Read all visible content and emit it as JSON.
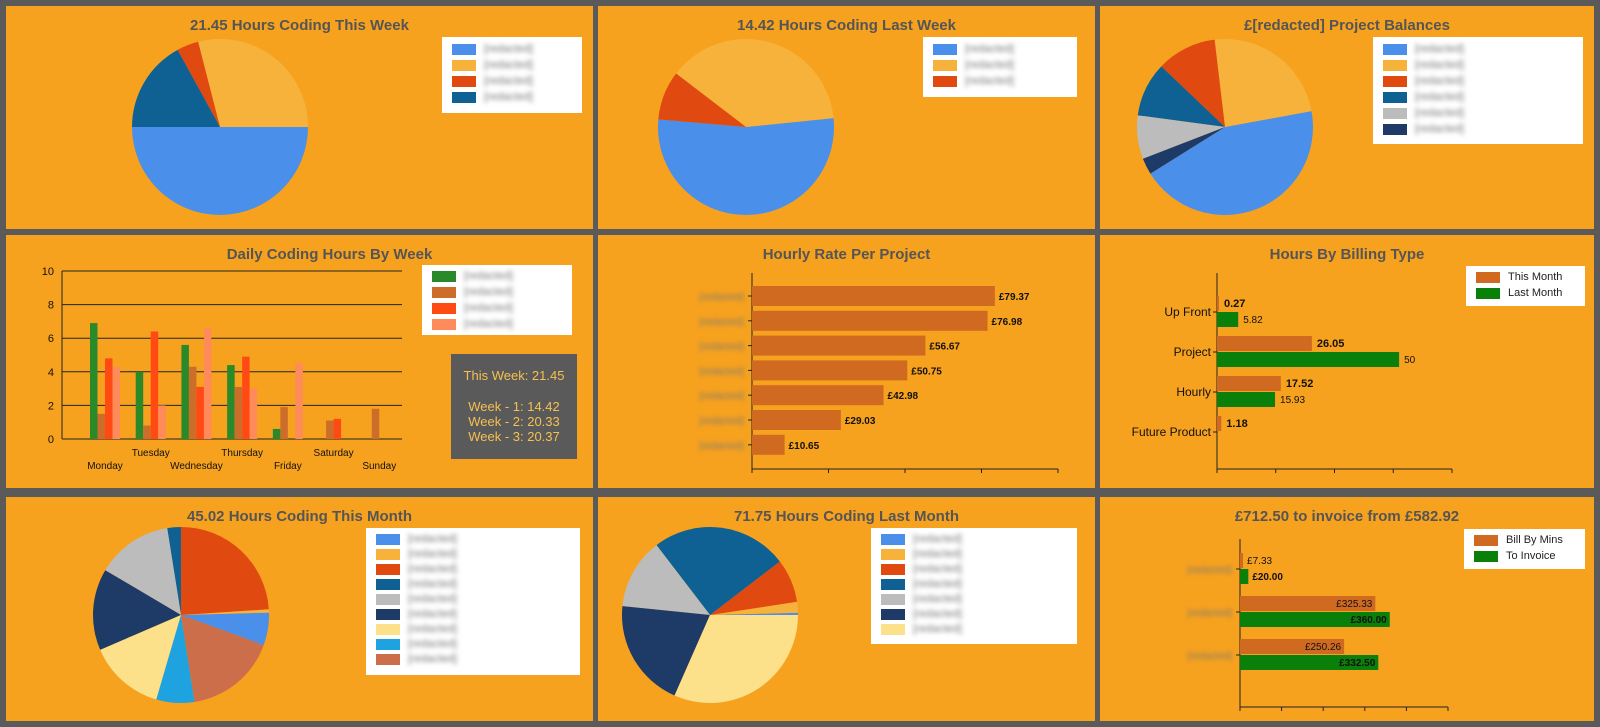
{
  "palette": {
    "background": "#5a5a5a",
    "panel": "#f7a21e",
    "title": "#555555",
    "blue": "#4a8fea",
    "light_orange": "#f7b23c",
    "red_orange": "#e04a10",
    "dark_blue": "#0f6193",
    "grey": "#bcbcbc",
    "navy": "#1e3a66",
    "pale_yellow": "#fde08a",
    "sky": "#1ea3e0",
    "terracotta": "#cc6e4a",
    "bar_orange": "#d06a20",
    "bar_green": "#0a7f0a",
    "series_green": "#2a8a2a",
    "series_orange": "#cc6e2a",
    "series_red": "#ff4a14",
    "series_salmon": "#ff8a5a"
  },
  "panels": {
    "this_week": {
      "title": "21.45 Hours Coding This Week",
      "legend": [
        "[redacted]",
        "[redacted]",
        "[redacted]",
        "[redacted]"
      ]
    },
    "last_week": {
      "title": "14.42 Hours Coding Last Week",
      "legend": [
        "[redacted]",
        "[redacted]",
        "[redacted]"
      ]
    },
    "balances": {
      "title": "£[redacted] Project Balances",
      "legend": [
        "[redacted]",
        "[redacted]",
        "[redacted]",
        "[redacted]",
        "[redacted]",
        "[redacted]"
      ]
    },
    "daily": {
      "title": "Daily Coding Hours By Week",
      "legend": [
        "[redacted]",
        "[redacted]",
        "[redacted]",
        "[redacted]"
      ],
      "summary_this_week": "This Week: 21.45",
      "summary_week_1": "Week - 1: 14.42",
      "summary_week_2": "Week - 2: 20.33",
      "summary_week_3": "Week - 3: 20.37"
    },
    "hourly_rate": {
      "title": "Hourly Rate Per Project"
    },
    "billing_type": {
      "title": "Hours By Billing Type",
      "legend": [
        "This Month",
        "Last Month"
      ]
    },
    "this_month": {
      "title": "45.02 Hours Coding This Month",
      "legend": [
        "[redacted]",
        "[redacted]",
        "[redacted]",
        "[redacted]",
        "[redacted]",
        "[redacted]",
        "[redacted]",
        "[redacted]",
        "[redacted]"
      ]
    },
    "last_month": {
      "title": "71.75 Hours Coding Last Month",
      "legend": [
        "[redacted]",
        "[redacted]",
        "[redacted]",
        "[redacted]",
        "[redacted]",
        "[redacted]",
        "[redacted]"
      ]
    },
    "invoice": {
      "title": "£712.50 to invoice from £582.92",
      "legend": [
        "Bill By Mins",
        "To Invoice"
      ]
    }
  },
  "chart_data": [
    {
      "id": "this_week",
      "type": "pie",
      "slices": [
        {
          "label": "[redacted]",
          "value": 50,
          "color": "#4a8fea"
        },
        {
          "label": "[redacted]",
          "value": 29,
          "color": "#f7b23c"
        },
        {
          "label": "[redacted]",
          "value": 4,
          "color": "#e04a10"
        },
        {
          "label": "[redacted]",
          "value": 17,
          "color": "#0f6193"
        }
      ]
    },
    {
      "id": "last_week",
      "type": "pie",
      "slices": [
        {
          "label": "[redacted]",
          "value": 53,
          "color": "#4a8fea"
        },
        {
          "label": "[redacted]",
          "value": 38,
          "color": "#f7b23c"
        },
        {
          "label": "[redacted]",
          "value": 9,
          "color": "#e04a10"
        }
      ]
    },
    {
      "id": "balances",
      "type": "pie",
      "slices": [
        {
          "label": "[redacted]",
          "value": 44,
          "color": "#4a8fea"
        },
        {
          "label": "[redacted]",
          "value": 24,
          "color": "#f7b23c"
        },
        {
          "label": "[redacted]",
          "value": 11,
          "color": "#e04a10"
        },
        {
          "label": "[redacted]",
          "value": 10,
          "color": "#0f6193"
        },
        {
          "label": "[redacted]",
          "value": 8,
          "color": "#bcbcbc"
        },
        {
          "label": "[redacted]",
          "value": 3,
          "color": "#1e3a66"
        }
      ]
    },
    {
      "id": "daily",
      "type": "bar",
      "categories": [
        "Monday",
        "Tuesday",
        "Wednesday",
        "Thursday",
        "Friday",
        "Saturday",
        "Sunday"
      ],
      "ylim": [
        0,
        10
      ],
      "yticks": [
        0,
        2,
        4,
        6,
        8,
        10
      ],
      "series": [
        {
          "values": [
            6.9,
            4.0,
            5.6,
            4.4,
            0.6,
            0,
            0
          ],
          "color": "#2a8a2a"
        },
        {
          "values": [
            1.5,
            0.8,
            4.3,
            3.1,
            1.9,
            1.1,
            1.8
          ],
          "color": "#cc6e2a"
        },
        {
          "values": [
            4.8,
            6.4,
            3.1,
            4.9,
            0,
            1.2,
            0
          ],
          "color": "#ff4a14"
        },
        {
          "values": [
            4.3,
            2.0,
            6.6,
            3.0,
            4.5,
            0,
            0
          ],
          "color": "#ff8a5a"
        }
      ]
    },
    {
      "id": "hourly_rate",
      "type": "bar",
      "orientation": "horizontal",
      "categories": [
        "[redacted]",
        "[redacted]",
        "[redacted]",
        "[redacted]",
        "[redacted]",
        "[redacted]",
        "[redacted]"
      ],
      "values": [
        79.37,
        76.98,
        56.67,
        50.75,
        42.98,
        29.03,
        10.65
      ],
      "labels": [
        "£79.37",
        "£76.98",
        "£56.67",
        "£50.75",
        "£42.98",
        "£29.03",
        "£10.65"
      ],
      "xlim": [
        0,
        100
      ]
    },
    {
      "id": "billing_type",
      "type": "bar",
      "orientation": "horizontal",
      "categories": [
        "Up Front",
        "Project",
        "Hourly",
        "Future Product"
      ],
      "xlim": [
        0,
        100
      ],
      "series": [
        {
          "name": "This Month",
          "values": [
            0.27,
            26.05,
            17.52,
            1.18
          ],
          "labels": [
            "0.27",
            "26.05",
            "17.52",
            "1.18"
          ],
          "color": "#d06a20"
        },
        {
          "name": "Last Month",
          "values": [
            5.82,
            50,
            15.93,
            null
          ],
          "labels": [
            "5.82",
            "50",
            "15.93",
            ""
          ],
          "color": "#0a7f0a"
        }
      ]
    },
    {
      "id": "this_month",
      "type": "pie",
      "slices": [
        {
          "label": "[redacted]",
          "value": 6,
          "color": "#4a8fea"
        },
        {
          "label": "[redacted]",
          "value": 0.6,
          "color": "#f7b23c"
        },
        {
          "label": "[redacted]",
          "value": 24,
          "color": "#e04a10"
        },
        {
          "label": "[redacted]",
          "value": 2.5,
          "color": "#0f6193"
        },
        {
          "label": "[redacted]",
          "value": 14,
          "color": "#bcbcbc"
        },
        {
          "label": "[redacted]",
          "value": 15,
          "color": "#1e3a66"
        },
        {
          "label": "[redacted]",
          "value": 14,
          "color": "#fde08a"
        },
        {
          "label": "[redacted]",
          "value": 7,
          "color": "#1ea3e0"
        },
        {
          "label": "[redacted]",
          "value": 17,
          "color": "#cc6e4a"
        }
      ]
    },
    {
      "id": "last_month",
      "type": "pie",
      "slices": [
        {
          "label": "[redacted]",
          "value": 0.4,
          "color": "#4a8fea"
        },
        {
          "label": "[redacted]",
          "value": 2,
          "color": "#f7b23c"
        },
        {
          "label": "[redacted]",
          "value": 8,
          "color": "#e04a10"
        },
        {
          "label": "[redacted]",
          "value": 25,
          "color": "#0f6193"
        },
        {
          "label": "[redacted]",
          "value": 13,
          "color": "#bcbcbc"
        },
        {
          "label": "[redacted]",
          "value": 20,
          "color": "#1e3a66"
        },
        {
          "label": "[redacted]",
          "value": 31.6,
          "color": "#fde08a"
        }
      ]
    },
    {
      "id": "invoice",
      "type": "bar",
      "orientation": "horizontal",
      "categories": [
        "[redacted]",
        "[redacted]",
        "[redacted]"
      ],
      "xlim": [
        0,
        500
      ],
      "series": [
        {
          "name": "Bill By Mins",
          "values": [
            7.33,
            325.33,
            250.26
          ],
          "labels": [
            "£7.33",
            "£325.33",
            "£250.26"
          ],
          "color": "#d06a20"
        },
        {
          "name": "To Invoice",
          "values": [
            20.0,
            360.0,
            332.5
          ],
          "labels": [
            "£20.00",
            "£360.00",
            "£332.50"
          ],
          "color": "#0a7f0a"
        }
      ]
    }
  ]
}
